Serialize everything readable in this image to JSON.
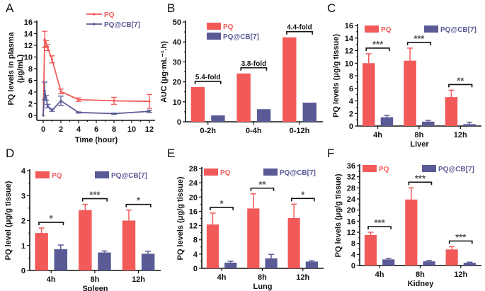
{
  "colors": {
    "pq": "#f25a5a",
    "cb7": "#5a5a96",
    "axis": "#111111",
    "sig": "#555555"
  },
  "chart_data": [
    {
      "id": "A",
      "panel_label": "A",
      "type": "line",
      "title": "",
      "xlabel": "Time (hour)",
      "ylabel": "PQ levels in plasma (μg/mL)",
      "xlim": [
        0,
        12
      ],
      "ylim": [
        0,
        16
      ],
      "xticks": [
        0,
        2,
        4,
        6,
        8,
        10,
        12
      ],
      "yticks": [
        0,
        2,
        4,
        6,
        8,
        10,
        12,
        14,
        16
      ],
      "legend": "top-right",
      "series": [
        {
          "name": "PQ",
          "color_key": "pq",
          "x": [
            0,
            0.17,
            0.33,
            0.5,
            1,
            2,
            4,
            8,
            12
          ],
          "y": [
            0,
            13.0,
            12.3,
            11.6,
            9.6,
            4.1,
            2.7,
            2.5,
            2.4
          ],
          "err": [
            0,
            1.4,
            0.5,
            0.5,
            0.6,
            0.4,
            0.3,
            0.6,
            1.2
          ]
        },
        {
          "name": "PQ@CB[7]",
          "color_key": "cb7",
          "x": [
            0,
            0.17,
            0.33,
            0.5,
            1,
            2,
            4,
            8,
            12
          ],
          "y": [
            0,
            4.2,
            3.0,
            1.6,
            0.9,
            2.5,
            0.5,
            0.3,
            0.7
          ],
          "err": [
            0,
            1.5,
            0.4,
            0.3,
            0.2,
            0.8,
            0.1,
            0.1,
            0.2
          ]
        }
      ]
    },
    {
      "id": "B",
      "panel_label": "B",
      "type": "bar",
      "xlabel": "",
      "ylabel": "AUC (μg·mL⁻¹.h)",
      "ylim": [
        0,
        50
      ],
      "yticks": [
        0,
        10,
        20,
        30,
        40,
        50
      ],
      "categories": [
        "0-2h",
        "0-4h",
        "0-12h"
      ],
      "legend": "top-left",
      "series": [
        {
          "name": "PQ",
          "color_key": "pq",
          "values": [
            17.4,
            24.2,
            42.3
          ],
          "err": [
            0,
            0,
            0
          ]
        },
        {
          "name": "PQ@CB[7]",
          "color_key": "cb7",
          "values": [
            3.2,
            6.3,
            9.6
          ],
          "err": [
            0,
            0,
            0
          ]
        }
      ],
      "annotations": [
        "5.4-fold",
        "3.8-fold",
        "4.4-fold"
      ],
      "annotation_kind": "fold"
    },
    {
      "id": "C",
      "panel_label": "C",
      "type": "bar",
      "xlabel": "Liver",
      "ylabel": "PQ levels (μg/g tissue)",
      "ylim": [
        0,
        16
      ],
      "yticks": [
        0,
        2,
        4,
        6,
        8,
        10,
        12,
        14,
        16
      ],
      "categories": [
        "4h",
        "8h",
        "12h"
      ],
      "legend": "top",
      "series": [
        {
          "name": "PQ",
          "color_key": "pq",
          "values": [
            10.0,
            10.4,
            4.6
          ],
          "err": [
            1.5,
            2.0,
            1.1
          ]
        },
        {
          "name": "PQ@CB[7]",
          "color_key": "cb7",
          "values": [
            1.4,
            0.7,
            0.3
          ],
          "err": [
            0.3,
            0.2,
            0.3
          ]
        }
      ],
      "annotations": [
        "***",
        "***",
        "**"
      ],
      "annotation_kind": "sig"
    },
    {
      "id": "D",
      "panel_label": "D",
      "type": "bar",
      "xlabel": "Spleen",
      "ylabel": "PQ level (μg/g tissue)",
      "ylim": [
        0,
        4
      ],
      "yticks": [
        0,
        1,
        2,
        3,
        4
      ],
      "categories": [
        "4h",
        "8h",
        "12h"
      ],
      "legend": "top",
      "series": [
        {
          "name": "PQ",
          "color_key": "pq",
          "values": [
            1.5,
            2.42,
            2.0
          ],
          "err": [
            0.2,
            0.23,
            0.42
          ]
        },
        {
          "name": "PQ@CB[7]",
          "color_key": "cb7",
          "values": [
            0.85,
            0.72,
            0.67
          ],
          "err": [
            0.17,
            0.06,
            0.1
          ]
        }
      ],
      "annotations": [
        "*",
        "***",
        "*"
      ],
      "annotation_kind": "sig"
    },
    {
      "id": "E",
      "panel_label": "E",
      "type": "bar",
      "xlabel": "Lung",
      "ylabel": "PQ levels (μg/g tissue)",
      "ylim": [
        0,
        28
      ],
      "yticks": [
        0,
        4,
        8,
        12,
        16,
        20,
        24,
        28
      ],
      "categories": [
        "4h",
        "8h",
        "12h"
      ],
      "legend": "top",
      "series": [
        {
          "name": "PQ",
          "color_key": "pq",
          "values": [
            12.3,
            16.8,
            14.1
          ],
          "err": [
            3.2,
            4.1,
            3.9
          ]
        },
        {
          "name": "PQ@CB[7]",
          "color_key": "cb7",
          "values": [
            1.6,
            2.8,
            1.9
          ],
          "err": [
            0.4,
            1.1,
            0.2
          ]
        }
      ],
      "annotations": [
        "*",
        "**",
        "*"
      ],
      "annotation_kind": "sig"
    },
    {
      "id": "F",
      "panel_label": "F",
      "type": "bar",
      "xlabel": "Kidney",
      "ylabel": "PQ levels (μg/g tissue)",
      "ylim": [
        0,
        36
      ],
      "yticks": [
        0,
        4,
        8,
        12,
        16,
        20,
        24,
        28,
        32,
        36
      ],
      "categories": [
        "4h",
        "8h",
        "12h"
      ],
      "legend": "top",
      "series": [
        {
          "name": "PQ",
          "color_key": "pq",
          "values": [
            11.0,
            23.8,
            5.8
          ],
          "err": [
            1.0,
            4.2,
            1.0
          ]
        },
        {
          "name": "PQ@CB[7]",
          "color_key": "cb7",
          "values": [
            2.2,
            1.5,
            1.0
          ],
          "err": [
            0.4,
            0.3,
            0.2
          ]
        }
      ],
      "annotations": [
        "***",
        "***",
        "***"
      ],
      "annotation_kind": "sig"
    }
  ]
}
